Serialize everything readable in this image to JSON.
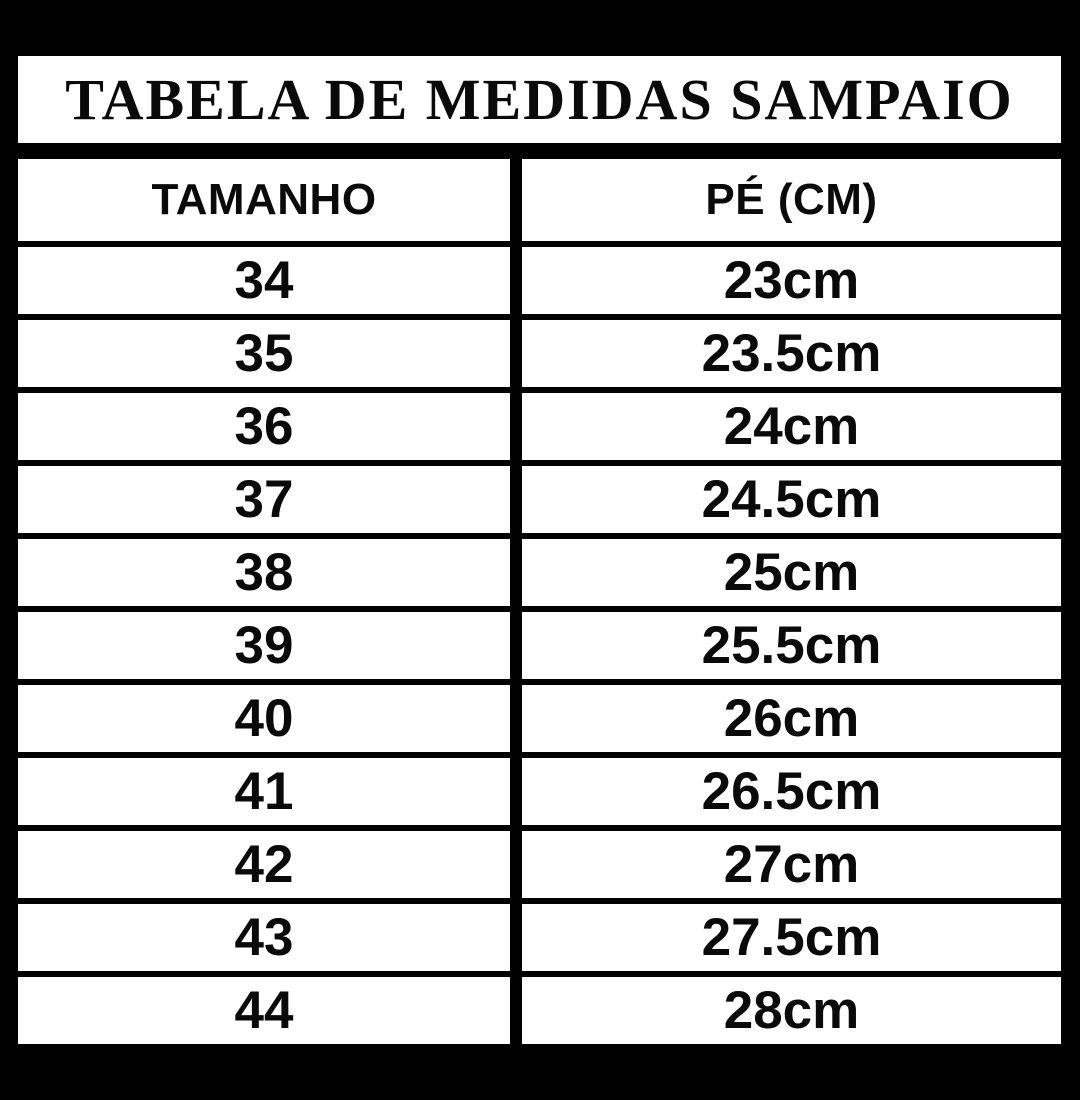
{
  "title": "TABELA DE MEDIDAS SAMPAIO",
  "table": {
    "headers": [
      "TAMANHO",
      "PÉ (CM)"
    ],
    "rows": [
      {
        "size": "34",
        "foot": "23cm"
      },
      {
        "size": "35",
        "foot": "23.5cm"
      },
      {
        "size": "36",
        "foot": "24cm"
      },
      {
        "size": "37",
        "foot": "24.5cm"
      },
      {
        "size": "38",
        "foot": "25cm"
      },
      {
        "size": "39",
        "foot": "25.5cm"
      },
      {
        "size": "40",
        "foot": "26cm"
      },
      {
        "size": "41",
        "foot": "26.5cm"
      },
      {
        "size": "42",
        "foot": "27cm"
      },
      {
        "size": "43",
        "foot": "27.5cm"
      },
      {
        "size": "44",
        "foot": "28cm"
      }
    ]
  },
  "colors": {
    "page_background": "#000000",
    "cell_background": "#ffffff",
    "text": "#0a0a0a"
  },
  "chart_data": {
    "type": "table",
    "title": "TABELA DE MEDIDAS SAMPAIO",
    "columns": [
      "TAMANHO",
      "PÉ (CM)"
    ],
    "rows": [
      [
        "34",
        "23cm"
      ],
      [
        "35",
        "23.5cm"
      ],
      [
        "36",
        "24cm"
      ],
      [
        "37",
        "24.5cm"
      ],
      [
        "38",
        "25cm"
      ],
      [
        "39",
        "25.5cm"
      ],
      [
        "40",
        "26cm"
      ],
      [
        "41",
        "26.5cm"
      ],
      [
        "42",
        "27cm"
      ],
      [
        "43",
        "27.5cm"
      ],
      [
        "44",
        "28cm"
      ]
    ]
  }
}
